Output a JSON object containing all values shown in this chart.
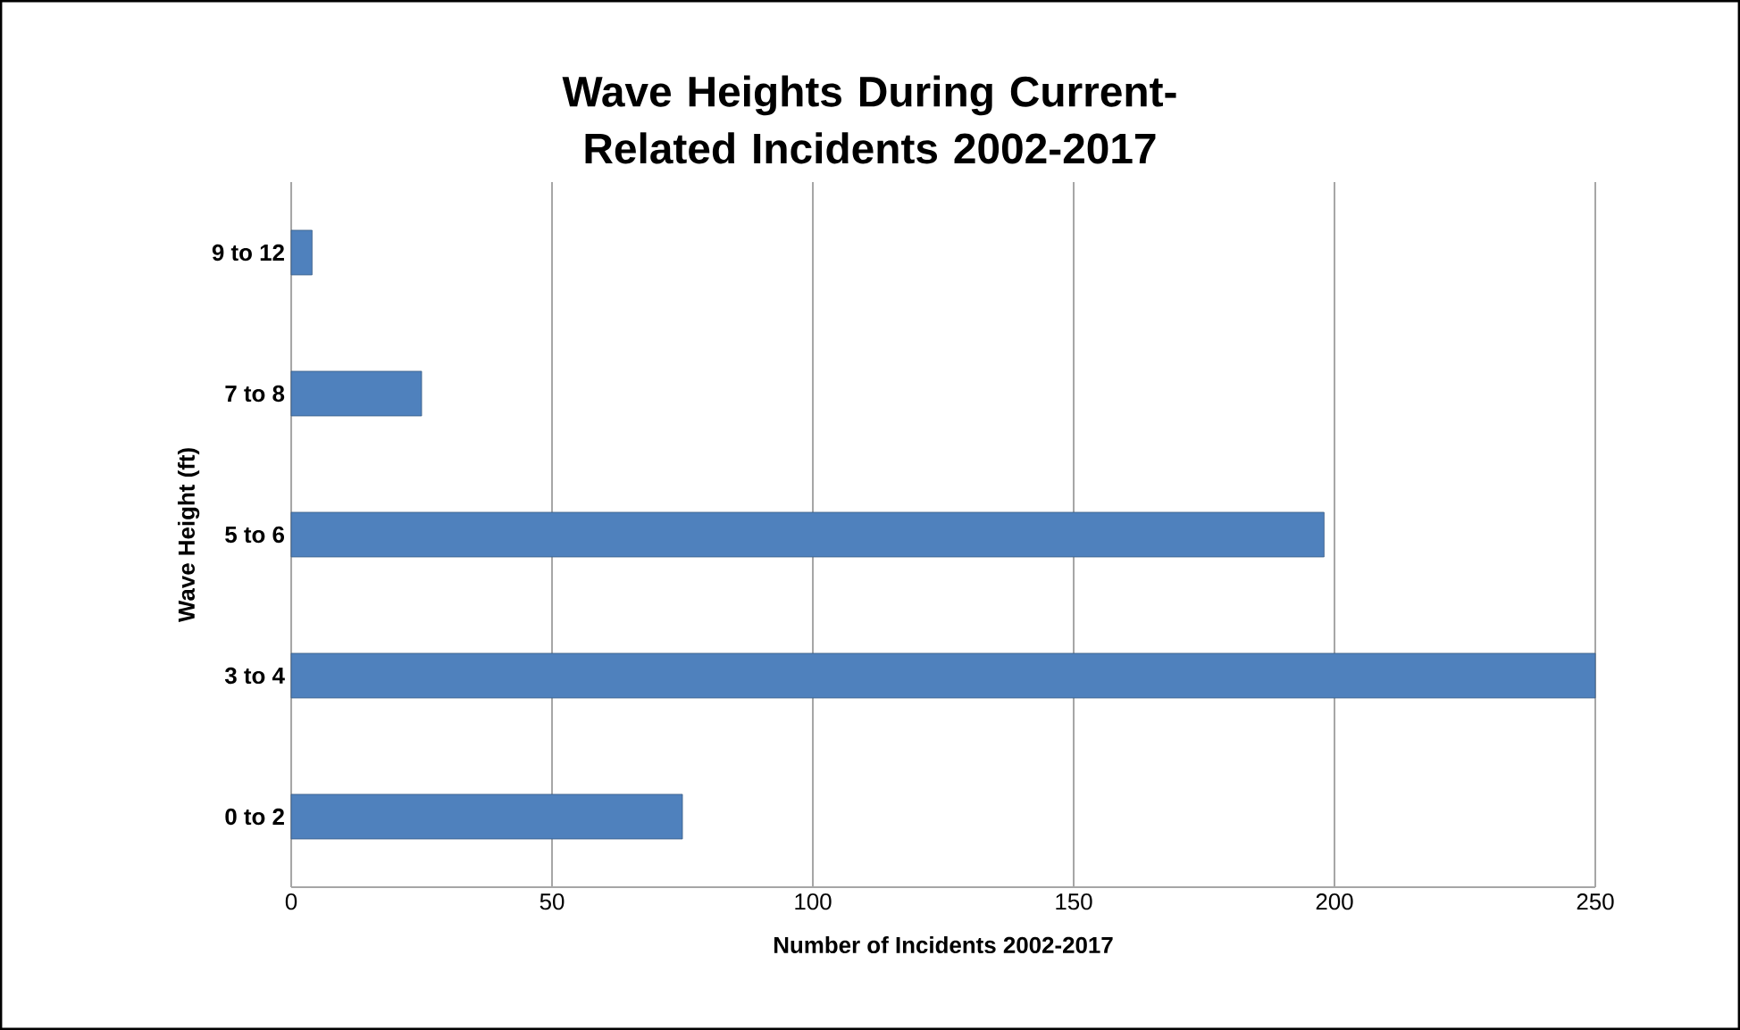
{
  "chart_data": {
    "type": "bar",
    "orientation": "horizontal",
    "title": "Wave Heights During Current-Related Incidents 2002-2017",
    "xlabel": "Number of Incidents 2002-2017",
    "ylabel": "Wave Height (ft)",
    "categories": [
      "9 to 12",
      "7 to 8",
      "5 to 6",
      "3 to 4",
      "0 to 2"
    ],
    "values": [
      4,
      25,
      198,
      250,
      75
    ],
    "color": "#4f81bd",
    "xlim": [
      0,
      250
    ],
    "xticks": [
      0,
      50,
      100,
      150,
      200,
      250
    ],
    "grid": "x"
  }
}
